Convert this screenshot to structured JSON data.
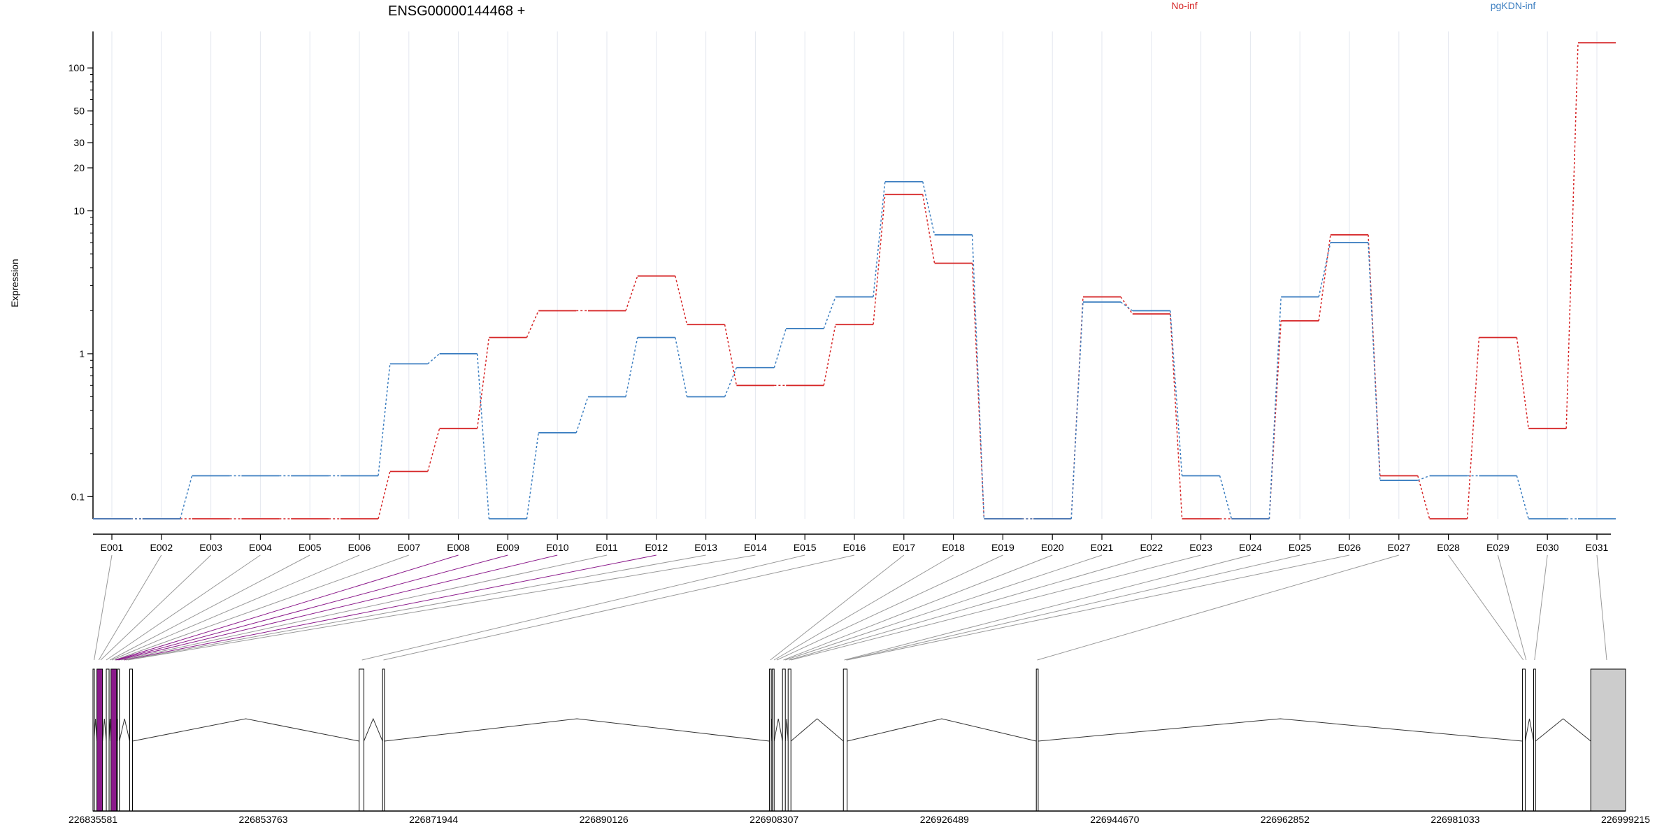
{
  "chart_data": {
    "type": "line",
    "title": "ENSG00000144468 +",
    "ylabel": "Expression",
    "xlabel": "",
    "y_scale": "log",
    "ylim": [
      0.07,
      180
    ],
    "y_ticks": [
      0.1,
      1,
      10,
      20,
      30,
      50,
      100
    ],
    "y_tick_labels": [
      "0.1",
      "1",
      "10",
      "20",
      "30",
      "50",
      "100"
    ],
    "grid": "vertical",
    "categories": [
      "E001",
      "E002",
      "E003",
      "E004",
      "E005",
      "E006",
      "E007",
      "E008",
      "E009",
      "E010",
      "E011",
      "E012",
      "E013",
      "E014",
      "E015",
      "E016",
      "E017",
      "E018",
      "E019",
      "E020",
      "E021",
      "E022",
      "E023",
      "E024",
      "E025",
      "E026",
      "E027",
      "E028",
      "E029",
      "E030",
      "E031"
    ],
    "series": [
      {
        "name": "No-inf",
        "color": "#d62728",
        "values": [
          0.07,
          0.07,
          0.07,
          0.07,
          0.07,
          0.07,
          0.15,
          0.3,
          1.3,
          2.0,
          2.0,
          3.5,
          1.6,
          0.6,
          0.6,
          1.6,
          13,
          4.3,
          0.07,
          0.07,
          2.5,
          1.9,
          0.07,
          0.07,
          1.7,
          6.8,
          0.14,
          0.07,
          1.3,
          0.3,
          150
        ]
      },
      {
        "name": "pgKDN-inf",
        "color": "#3d7fc1",
        "values": [
          0.07,
          0.07,
          0.14,
          0.14,
          0.14,
          0.14,
          0.85,
          1.0,
          0.07,
          0.28,
          0.5,
          1.3,
          0.5,
          0.8,
          1.5,
          2.5,
          16,
          6.8,
          0.07,
          0.07,
          2.3,
          2.0,
          0.14,
          0.07,
          2.5,
          6.0,
          0.13,
          0.14,
          0.14,
          0.07,
          0.07
        ]
      }
    ],
    "legend": {
      "placement": "top",
      "entries": [
        "No-inf",
        "pgKDN-inf"
      ]
    },
    "genome": {
      "axis_labels": [
        "226835581",
        "226853763",
        "226871944",
        "226890126",
        "226908307",
        "226926489",
        "226944670",
        "226962852",
        "226981033",
        "226999215"
      ],
      "axis_range": [
        226835581,
        226999215
      ],
      "exons": [
        [
          226835581,
          226835700,
          "#ffffff"
        ],
        [
          226836000,
          226836600,
          "#8b1a8b"
        ],
        [
          226837000,
          226837300,
          "#ffffff"
        ],
        [
          226837500,
          226838100,
          "#8b1a8b"
        ],
        [
          226838200,
          226838400,
          "#ffffff"
        ],
        [
          226839500,
          226839800,
          "#ffffff"
        ],
        [
          226864000,
          226864500,
          "#ffffff"
        ],
        [
          226866500,
          226866700,
          "#ffffff"
        ],
        [
          226907800,
          226908000,
          "#ffffff"
        ],
        [
          226908100,
          226908307,
          "#ffffff"
        ],
        [
          226909200,
          226909500,
          "#ffffff"
        ],
        [
          226909800,
          226910100,
          "#ffffff"
        ],
        [
          226915700,
          226916100,
          "#ffffff"
        ],
        [
          226936300,
          226936500,
          "#ffffff"
        ],
        [
          226988200,
          226988500,
          "#ffffff"
        ],
        [
          226989400,
          226989600,
          "#ffffff"
        ],
        [
          226995500,
          226999215,
          "#cccccc"
        ]
      ],
      "exon_links": [
        [
          226835700,
          "#999999"
        ],
        [
          226836200,
          "#999999"
        ],
        [
          226836400,
          "#999999"
        ],
        [
          226837000,
          "#999999"
        ],
        [
          226837400,
          "#999999"
        ],
        [
          226837600,
          "#999999"
        ],
        [
          226837900,
          "#999999"
        ],
        [
          226838000,
          "#8b1a8b"
        ],
        [
          226838100,
          "#8b1a8b"
        ],
        [
          226838300,
          "#8b1a8b"
        ],
        [
          226838600,
          "#999999"
        ],
        [
          226838900,
          "#8b1a8b"
        ],
        [
          226839100,
          "#999999"
        ],
        [
          226839300,
          "#999999"
        ],
        [
          226864300,
          "#999999"
        ],
        [
          226866600,
          "#999999"
        ],
        [
          226907900,
          "#999999"
        ],
        [
          226908300,
          "#999999"
        ],
        [
          226908600,
          "#999999"
        ],
        [
          226909300,
          "#999999"
        ],
        [
          226909500,
          "#999999"
        ],
        [
          226909900,
          "#999999"
        ],
        [
          226910100,
          "#999999"
        ],
        [
          226915800,
          "#999999"
        ],
        [
          226916000,
          "#999999"
        ],
        [
          226916100,
          "#999999"
        ],
        [
          226936400,
          "#999999"
        ],
        [
          226988300,
          "#999999"
        ],
        [
          226988600,
          "#999999"
        ],
        [
          226989500,
          "#999999"
        ],
        [
          226997200,
          "#999999"
        ]
      ]
    }
  }
}
